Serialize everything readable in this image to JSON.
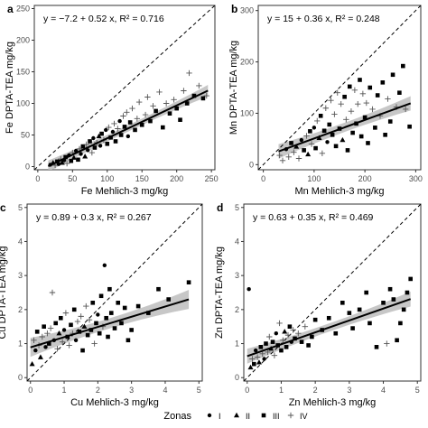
{
  "figure": {
    "legend": {
      "title": "Zonas",
      "entries": [
        {
          "label": "I",
          "marker": "circle"
        },
        {
          "label": "II",
          "marker": "triangle"
        },
        {
          "label": "III",
          "marker": "square"
        },
        {
          "label": "IV",
          "marker": "plus"
        }
      ]
    },
    "colors": {
      "points": "#000000",
      "fit_line": "#000000",
      "ci_band": "#bdbdbd",
      "identity_line": "#000000"
    }
  },
  "chart_data": [
    {
      "panel": "a",
      "type": "scatter",
      "equation": "y = −7.2 + 0.52 x,  R² = 0.716",
      "xlabel": "Fe Mehlich-3 mg/kg",
      "ylabel": "Fe DPTA-TEA mg/kg",
      "xlim": [
        -5,
        255
      ],
      "ylim": [
        -5,
        255
      ],
      "xticks": [
        0,
        50,
        100,
        150,
        200,
        250
      ],
      "yticks": [
        0,
        50,
        100,
        150,
        200,
        250
      ],
      "fit": {
        "intercept": -7.2,
        "slope": 0.52,
        "x_range": [
          15,
          245
        ],
        "ci_halfwidth": [
          5,
          9
        ]
      },
      "identity_line": true,
      "grid": false,
      "points": [
        [
          18,
          3,
          "I"
        ],
        [
          22,
          6,
          "II"
        ],
        [
          25,
          2,
          "IV"
        ],
        [
          28,
          8,
          "III"
        ],
        [
          30,
          4,
          "I"
        ],
        [
          33,
          12,
          "IV"
        ],
        [
          35,
          6,
          "II"
        ],
        [
          38,
          10,
          "I"
        ],
        [
          40,
          15,
          "III"
        ],
        [
          42,
          5,
          "IV"
        ],
        [
          45,
          18,
          "I"
        ],
        [
          48,
          9,
          "III"
        ],
        [
          50,
          22,
          "IV"
        ],
        [
          52,
          14,
          "II"
        ],
        [
          55,
          25,
          "I"
        ],
        [
          58,
          11,
          "III"
        ],
        [
          60,
          28,
          "IV"
        ],
        [
          62,
          20,
          "I"
        ],
        [
          65,
          32,
          "III"
        ],
        [
          68,
          16,
          "II"
        ],
        [
          70,
          35,
          "IV"
        ],
        [
          72,
          26,
          "I"
        ],
        [
          75,
          40,
          "III"
        ],
        [
          78,
          22,
          "IV"
        ],
        [
          80,
          45,
          "I"
        ],
        [
          82,
          30,
          "III"
        ],
        [
          85,
          38,
          "IV"
        ],
        [
          88,
          48,
          "II"
        ],
        [
          90,
          33,
          "I"
        ],
        [
          92,
          52,
          "III"
        ],
        [
          95,
          42,
          "IV"
        ],
        [
          98,
          58,
          "I"
        ],
        [
          100,
          36,
          "III"
        ],
        [
          102,
          62,
          "IV"
        ],
        [
          105,
          46,
          "III"
        ],
        [
          108,
          55,
          "I"
        ],
        [
          110,
          68,
          "IV"
        ],
        [
          112,
          40,
          "III"
        ],
        [
          115,
          60,
          "IV"
        ],
        [
          118,
          72,
          "I"
        ],
        [
          120,
          50,
          "III"
        ],
        [
          123,
          80,
          "IV"
        ],
        [
          125,
          63,
          "III"
        ],
        [
          128,
          86,
          "IV"
        ],
        [
          130,
          48,
          "I"
        ],
        [
          133,
          70,
          "III"
        ],
        [
          136,
          92,
          "IV"
        ],
        [
          140,
          58,
          "III"
        ],
        [
          143,
          76,
          "IV"
        ],
        [
          146,
          102,
          "IV"
        ],
        [
          150,
          66,
          "III"
        ],
        [
          155,
          82,
          "IV"
        ],
        [
          158,
          110,
          "IV"
        ],
        [
          162,
          72,
          "III"
        ],
        [
          166,
          96,
          "IV"
        ],
        [
          170,
          88,
          "III"
        ],
        [
          175,
          118,
          "IV"
        ],
        [
          180,
          62,
          "III"
        ],
        [
          185,
          100,
          "IV"
        ],
        [
          190,
          84,
          "III"
        ],
        [
          196,
          106,
          "IV"
        ],
        [
          200,
          92,
          "III"
        ],
        [
          205,
          74,
          "III"
        ],
        [
          210,
          120,
          "IV"
        ],
        [
          215,
          100,
          "III"
        ],
        [
          218,
          148,
          "IV"
        ],
        [
          225,
          112,
          "III"
        ],
        [
          232,
          128,
          "IV"
        ],
        [
          238,
          108,
          "III"
        ],
        [
          243,
          112,
          "IV"
        ]
      ]
    },
    {
      "panel": "b",
      "type": "scatter",
      "equation": "y = 15 + 0.36 x,  R² = 0.248",
      "xlabel": "Mn Mehlich-3 mg/kg",
      "ylabel": "Mn DPTA-TEA mg/kg",
      "xlim": [
        -10,
        310
      ],
      "ylim": [
        -10,
        310
      ],
      "xticks": [
        0,
        100,
        200,
        300
      ],
      "yticks": [
        0,
        100,
        200,
        300
      ],
      "fit": {
        "intercept": 15,
        "slope": 0.36,
        "x_range": [
          30,
          290
        ],
        "ci_halfwidth": [
          9,
          14
        ]
      },
      "identity_line": true,
      "grid": false,
      "points": [
        [
          32,
          18,
          "IV"
        ],
        [
          38,
          8,
          "IV"
        ],
        [
          45,
          30,
          "I"
        ],
        [
          50,
          15,
          "IV"
        ],
        [
          55,
          42,
          "III"
        ],
        [
          60,
          24,
          "IV"
        ],
        [
          65,
          35,
          "II"
        ],
        [
          70,
          12,
          "IV"
        ],
        [
          75,
          48,
          "I"
        ],
        [
          80,
          28,
          "III"
        ],
        [
          85,
          56,
          "IV"
        ],
        [
          88,
          20,
          "II"
        ],
        [
          92,
          65,
          "III"
        ],
        [
          95,
          40,
          "IV"
        ],
        [
          100,
          72,
          "I"
        ],
        [
          103,
          32,
          "III"
        ],
        [
          106,
          85,
          "IV"
        ],
        [
          110,
          52,
          "II"
        ],
        [
          113,
          95,
          "III"
        ],
        [
          116,
          22,
          "IV"
        ],
        [
          120,
          66,
          "III"
        ],
        [
          123,
          110,
          "IV"
        ],
        [
          126,
          44,
          "I"
        ],
        [
          130,
          78,
          "III"
        ],
        [
          133,
          125,
          "IV"
        ],
        [
          136,
          58,
          "III"
        ],
        [
          140,
          98,
          "IV"
        ],
        [
          143,
          36,
          "III"
        ],
        [
          146,
          140,
          "IV"
        ],
        [
          150,
          70,
          "III"
        ],
        [
          153,
          118,
          "IV"
        ],
        [
          156,
          48,
          "II"
        ],
        [
          160,
          132,
          "III"
        ],
        [
          163,
          88,
          "IV"
        ],
        [
          166,
          28,
          "III"
        ],
        [
          170,
          152,
          "III"
        ],
        [
          173,
          104,
          "IV"
        ],
        [
          176,
          62,
          "III"
        ],
        [
          180,
          145,
          "IV"
        ],
        [
          183,
          80,
          "III"
        ],
        [
          186,
          118,
          "IV"
        ],
        [
          190,
          165,
          "III"
        ],
        [
          193,
          55,
          "III"
        ],
        [
          196,
          138,
          "IV"
        ],
        [
          200,
          92,
          "III"
        ],
        [
          203,
          120,
          "IV"
        ],
        [
          206,
          42,
          "III"
        ],
        [
          210,
          150,
          "III"
        ],
        [
          215,
          108,
          "IV"
        ],
        [
          220,
          72,
          "III"
        ],
        [
          225,
          135,
          "III"
        ],
        [
          230,
          95,
          "IV"
        ],
        [
          235,
          160,
          "III"
        ],
        [
          240,
          58,
          "III"
        ],
        [
          245,
          128,
          "IV"
        ],
        [
          250,
          84,
          "III"
        ],
        [
          255,
          175,
          "III"
        ],
        [
          262,
          112,
          "IV"
        ],
        [
          268,
          140,
          "III"
        ],
        [
          275,
          192,
          "III"
        ],
        [
          280,
          108,
          "IV"
        ],
        [
          288,
          74,
          "III"
        ]
      ]
    },
    {
      "panel": "c",
      "type": "scatter",
      "equation": "y = 0.89 + 0.3 x,  R² = 0.267",
      "xlabel": "Cu Mehlich-3 mg/kg",
      "ylabel": "Cu DPTA-TEA mg/kg",
      "xlim": [
        -0.1,
        5.1
      ],
      "ylim": [
        -0.1,
        5.1
      ],
      "xticks": [
        0,
        1,
        2,
        3,
        4,
        5
      ],
      "yticks": [
        0,
        1,
        2,
        3,
        4,
        5
      ],
      "fit": {
        "intercept": 0.89,
        "slope": 0.3,
        "x_range": [
          0,
          4.7
        ],
        "ci_halfwidth": [
          0.15,
          0.28
        ]
      },
      "identity_line": true,
      "grid": false,
      "points": [
        [
          0.05,
          0.4,
          "II"
        ],
        [
          0.1,
          1.1,
          "IV"
        ],
        [
          0.15,
          0.8,
          "I"
        ],
        [
          0.2,
          1.35,
          "III"
        ],
        [
          0.25,
          0.95,
          "IV"
        ],
        [
          0.3,
          0.6,
          "II"
        ],
        [
          0.35,
          1.2,
          "IV"
        ],
        [
          0.4,
          1.5,
          "III"
        ],
        [
          0.45,
          0.9,
          "I"
        ],
        [
          0.5,
          1.3,
          "IV"
        ],
        [
          0.55,
          1.0,
          "III"
        ],
        [
          0.6,
          1.45,
          "IV"
        ],
        [
          0.65,
          2.5,
          "IV"
        ],
        [
          0.7,
          1.1,
          "I"
        ],
        [
          0.75,
          1.6,
          "III"
        ],
        [
          0.8,
          0.85,
          "IV"
        ],
        [
          0.85,
          1.3,
          "II"
        ],
        [
          0.9,
          1.75,
          "III"
        ],
        [
          0.95,
          1.05,
          "IV"
        ],
        [
          1.0,
          1.4,
          "I"
        ],
        [
          1.05,
          1.9,
          "IV"
        ],
        [
          1.1,
          1.2,
          "III"
        ],
        [
          1.15,
          0.95,
          "IV"
        ],
        [
          1.2,
          1.55,
          "III"
        ],
        [
          1.25,
          1.3,
          "IV"
        ],
        [
          1.3,
          2.0,
          "III"
        ],
        [
          1.35,
          1.1,
          "I"
        ],
        [
          1.4,
          1.65,
          "IV"
        ],
        [
          1.45,
          1.35,
          "III"
        ],
        [
          1.5,
          1.8,
          "IV"
        ],
        [
          1.55,
          0.8,
          "III"
        ],
        [
          1.6,
          1.5,
          "II"
        ],
        [
          1.65,
          2.1,
          "IV"
        ],
        [
          1.7,
          1.25,
          "III"
        ],
        [
          1.75,
          1.7,
          "IV"
        ],
        [
          1.8,
          1.4,
          "III"
        ],
        [
          1.85,
          2.2,
          "III"
        ],
        [
          1.9,
          1.0,
          "IV"
        ],
        [
          1.95,
          1.6,
          "III"
        ],
        [
          2.0,
          1.85,
          "I"
        ],
        [
          2.05,
          1.3,
          "III"
        ],
        [
          2.1,
          2.4,
          "III"
        ],
        [
          2.15,
          1.5,
          "IV"
        ],
        [
          2.2,
          3.3,
          "I"
        ],
        [
          2.25,
          1.75,
          "III"
        ],
        [
          2.3,
          1.2,
          "III"
        ],
        [
          2.35,
          2.6,
          "III"
        ],
        [
          2.4,
          1.9,
          "III"
        ],
        [
          2.5,
          1.45,
          "III"
        ],
        [
          2.6,
          2.2,
          "III"
        ],
        [
          2.7,
          1.6,
          "III"
        ],
        [
          2.8,
          2.05,
          "III"
        ],
        [
          2.9,
          1.1,
          "III"
        ],
        [
          3.0,
          1.4,
          "III"
        ],
        [
          3.2,
          2.1,
          "III"
        ],
        [
          3.5,
          1.9,
          "III"
        ],
        [
          3.8,
          2.6,
          "III"
        ],
        [
          4.1,
          2.3,
          "III"
        ],
        [
          4.7,
          2.8,
          "III"
        ]
      ]
    },
    {
      "panel": "d",
      "type": "scatter",
      "equation": "y = 0.63 + 0.35 x,  R² = 0.469",
      "xlabel": "Zn Mehlich-3 mg/kg",
      "ylabel": "Zn DPTA-TEA mg/kg",
      "xlim": [
        -0.1,
        5.1
      ],
      "ylim": [
        -0.1,
        5.1
      ],
      "xticks": [
        0,
        1,
        2,
        3,
        4,
        5
      ],
      "yticks": [
        0,
        1,
        2,
        3,
        4,
        5
      ],
      "fit": {
        "intercept": 0.63,
        "slope": 0.35,
        "x_range": [
          0,
          4.8
        ],
        "ci_halfwidth": [
          0.12,
          0.22
        ]
      },
      "identity_line": true,
      "grid": false,
      "points": [
        [
          0.05,
          2.6,
          "I"
        ],
        [
          0.1,
          0.3,
          "II"
        ],
        [
          0.15,
          0.55,
          "IV"
        ],
        [
          0.2,
          0.4,
          "III"
        ],
        [
          0.25,
          0.8,
          "I"
        ],
        [
          0.3,
          0.6,
          "IV"
        ],
        [
          0.35,
          0.45,
          "II"
        ],
        [
          0.4,
          0.9,
          "III"
        ],
        [
          0.45,
          0.7,
          "IV"
        ],
        [
          0.5,
          0.55,
          "I"
        ],
        [
          0.55,
          1.0,
          "III"
        ],
        [
          0.6,
          0.75,
          "IV"
        ],
        [
          0.65,
          1.2,
          "IV"
        ],
        [
          0.7,
          0.85,
          "II"
        ],
        [
          0.75,
          1.05,
          "III"
        ],
        [
          0.8,
          0.65,
          "IV"
        ],
        [
          0.85,
          1.3,
          "I"
        ],
        [
          0.9,
          0.95,
          "III"
        ],
        [
          0.95,
          1.6,
          "IV"
        ],
        [
          1.0,
          0.8,
          "III"
        ],
        [
          1.05,
          1.1,
          "IV"
        ],
        [
          1.1,
          1.35,
          "II"
        ],
        [
          1.15,
          0.9,
          "III"
        ],
        [
          1.2,
          1.25,
          "IV"
        ],
        [
          1.25,
          1.5,
          "III"
        ],
        [
          1.3,
          1.05,
          "I"
        ],
        [
          1.35,
          1.4,
          "IV"
        ],
        [
          1.4,
          1.15,
          "III"
        ],
        [
          1.5,
          1.3,
          "IV"
        ],
        [
          1.6,
          1.05,
          "III"
        ],
        [
          1.7,
          1.5,
          "IV"
        ],
        [
          1.8,
          0.95,
          "III"
        ],
        [
          1.9,
          1.2,
          "III"
        ],
        [
          2.0,
          1.7,
          "III"
        ],
        [
          2.2,
          1.4,
          "III"
        ],
        [
          2.4,
          1.75,
          "III"
        ],
        [
          2.6,
          1.3,
          "III"
        ],
        [
          2.8,
          2.2,
          "III"
        ],
        [
          3.0,
          1.9,
          "III"
        ],
        [
          3.1,
          1.45,
          "III"
        ],
        [
          3.3,
          2.0,
          "III"
        ],
        [
          3.5,
          2.5,
          "III"
        ],
        [
          3.6,
          1.6,
          "III"
        ],
        [
          3.8,
          0.9,
          "III"
        ],
        [
          4.0,
          2.2,
          "III"
        ],
        [
          4.1,
          1.0,
          "IV"
        ],
        [
          4.2,
          2.6,
          "III"
        ],
        [
          4.3,
          2.3,
          "III"
        ],
        [
          4.4,
          1.1,
          "III"
        ],
        [
          4.5,
          1.6,
          "III"
        ],
        [
          4.6,
          2.0,
          "III"
        ],
        [
          4.7,
          2.5,
          "III"
        ],
        [
          4.8,
          2.9,
          "III"
        ]
      ]
    }
  ]
}
